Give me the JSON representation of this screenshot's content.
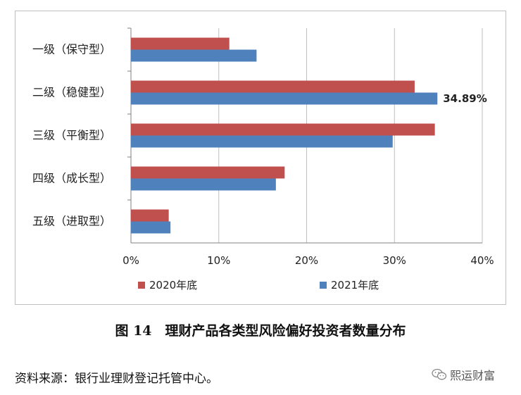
{
  "chart_data": {
    "type": "bar",
    "orientation": "horizontal",
    "categories": [
      "一级（保守型）",
      "二级（稳健型）",
      "三级（平衡型）",
      "四级（成长型）",
      "五级（进取型）"
    ],
    "series": [
      {
        "name": "2020年底",
        "color": "#c0504d",
        "values": [
          11.2,
          32.3,
          34.6,
          17.5,
          4.3
        ]
      },
      {
        "name": "2021年底",
        "color": "#4f81bd",
        "values": [
          14.3,
          34.89,
          29.8,
          16.5,
          4.5
        ]
      }
    ],
    "xlim": [
      0,
      40
    ],
    "x_ticks": [
      "0%",
      "10%",
      "20%",
      "30%",
      "40%"
    ],
    "grid": true,
    "legend_position": "bottom",
    "annotations": [
      {
        "category": "二级（稳健型）",
        "series": "2021年底",
        "label": "34.89%"
      }
    ]
  },
  "caption": "图 14　理财产品各类型风险偏好投资者数量分布",
  "source": "资料来源：银行业理财登记托管中心。",
  "watermark": {
    "text": "熙运财富",
    "icon": "wechat-icon"
  }
}
